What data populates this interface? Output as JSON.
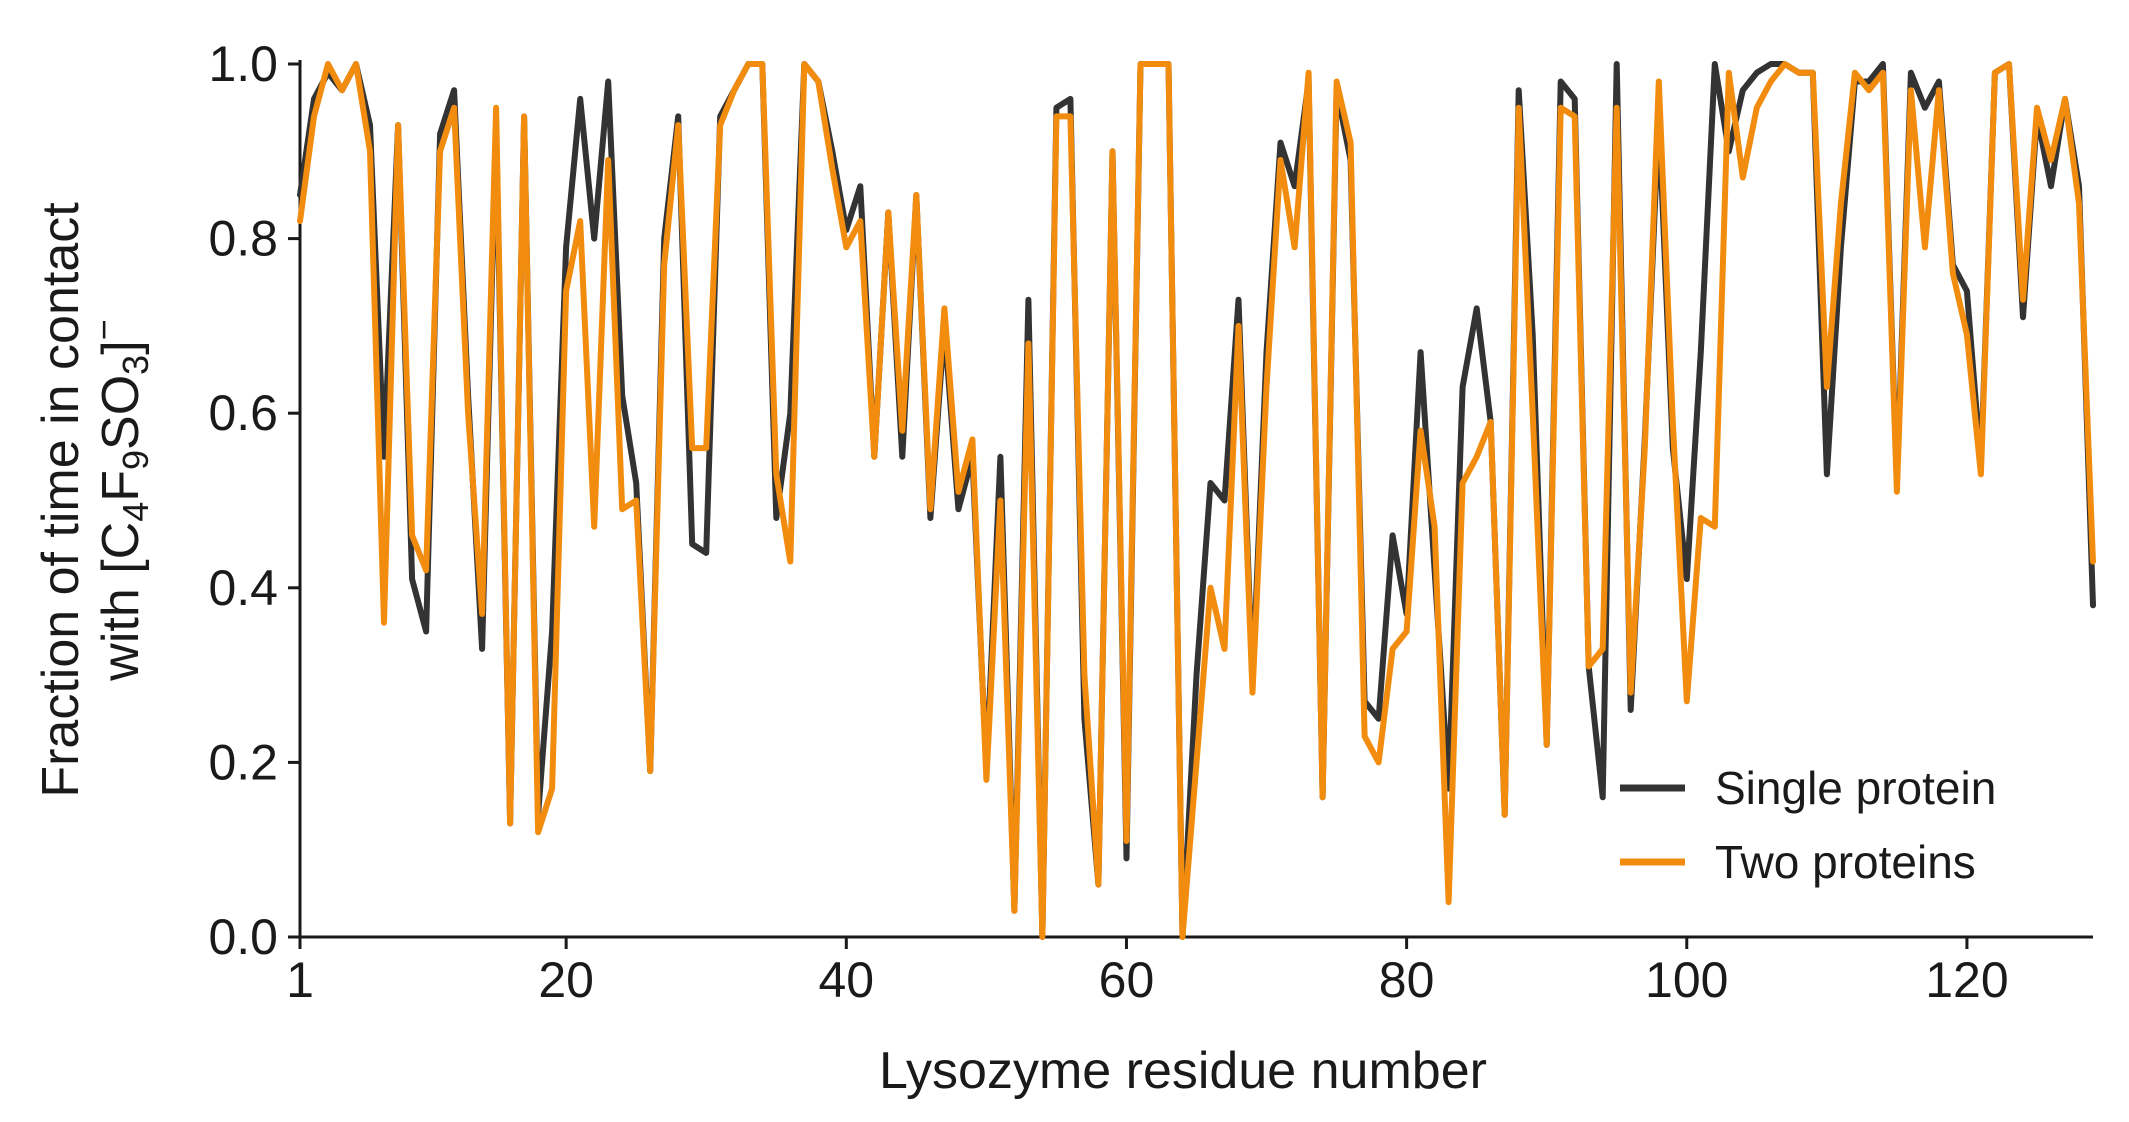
{
  "chart_data": {
    "type": "line",
    "title": "",
    "xlabel": "Lysozyme residue number",
    "ylabel": {
      "line1": "Fraction of time in contact",
      "line2_prefix": "with [C",
      "sub1": "4",
      "mid1": "F",
      "sub2": "9",
      "mid2": "SO",
      "sub3": "3",
      "suffix": "]",
      "sup": "−"
    },
    "xlim": [
      1,
      129
    ],
    "ylim": [
      0,
      1
    ],
    "xticks": [
      1,
      20,
      40,
      60,
      80,
      100,
      120
    ],
    "xtick_labels": [
      "1",
      "20",
      "40",
      "60",
      "80",
      "100",
      "120"
    ],
    "yticks": [
      0,
      0.2,
      0.4,
      0.6,
      0.8,
      1.0
    ],
    "ytick_labels": [
      "0.0",
      "0.2",
      "0.4",
      "0.6",
      "0.8",
      "1.0"
    ],
    "grid": false,
    "legend_position": "bottom-right",
    "x": [
      1,
      2,
      3,
      4,
      5,
      6,
      7,
      8,
      9,
      10,
      11,
      12,
      13,
      14,
      15,
      16,
      17,
      18,
      19,
      20,
      21,
      22,
      23,
      24,
      25,
      26,
      27,
      28,
      29,
      30,
      31,
      32,
      33,
      34,
      35,
      36,
      37,
      38,
      39,
      40,
      41,
      42,
      43,
      44,
      45,
      46,
      47,
      48,
      49,
      50,
      51,
      52,
      53,
      54,
      55,
      56,
      57,
      58,
      59,
      60,
      61,
      62,
      63,
      64,
      65,
      66,
      67,
      68,
      69,
      70,
      71,
      72,
      73,
      74,
      75,
      76,
      77,
      78,
      79,
      80,
      81,
      82,
      83,
      84,
      85,
      86,
      87,
      88,
      89,
      90,
      91,
      92,
      93,
      94,
      95,
      96,
      97,
      98,
      99,
      100,
      101,
      102,
      103,
      104,
      105,
      106,
      107,
      108,
      109,
      110,
      111,
      112,
      113,
      114,
      115,
      116,
      117,
      118,
      119,
      120,
      121,
      122,
      123,
      124,
      125,
      126,
      127,
      128,
      129
    ],
    "series": [
      {
        "name": "Single protein",
        "color": "#333333",
        "values": [
          0.85,
          0.96,
          0.99,
          0.97,
          1.0,
          0.93,
          0.55,
          0.93,
          0.41,
          0.35,
          0.92,
          0.97,
          0.62,
          0.33,
          0.93,
          0.13,
          0.94,
          0.14,
          0.35,
          0.79,
          0.96,
          0.8,
          0.98,
          0.62,
          0.52,
          0.19,
          0.8,
          0.94,
          0.45,
          0.44,
          0.94,
          0.97,
          1.0,
          1.0,
          0.48,
          0.6,
          1.0,
          0.98,
          0.9,
          0.81,
          0.86,
          0.55,
          0.83,
          0.55,
          0.85,
          0.48,
          0.7,
          0.49,
          0.55,
          0.19,
          0.55,
          0.03,
          0.73,
          0.0,
          0.95,
          0.96,
          0.25,
          0.06,
          0.9,
          0.09,
          1.0,
          1.0,
          1.0,
          0.0,
          0.3,
          0.52,
          0.5,
          0.73,
          0.29,
          0.67,
          0.91,
          0.86,
          0.98,
          0.16,
          0.97,
          0.89,
          0.27,
          0.25,
          0.46,
          0.37,
          0.67,
          0.42,
          0.17,
          0.63,
          0.72,
          0.59,
          0.14,
          0.97,
          0.69,
          0.22,
          0.98,
          0.96,
          0.31,
          0.16,
          1.0,
          0.26,
          0.57,
          0.94,
          0.56,
          0.41,
          0.67,
          1.0,
          0.9,
          0.97,
          0.99,
          1.0,
          1.0,
          0.99,
          0.99,
          0.53,
          0.79,
          0.98,
          0.98,
          1.0,
          0.52,
          0.99,
          0.95,
          0.98,
          0.77,
          0.74,
          0.54,
          0.99,
          1.0,
          0.71,
          0.94,
          0.86,
          0.96,
          0.86,
          0.38
        ]
      },
      {
        "name": "Two proteins",
        "color": "#f28c0f",
        "values": [
          0.82,
          0.94,
          1.0,
          0.97,
          1.0,
          0.9,
          0.36,
          0.93,
          0.46,
          0.42,
          0.9,
          0.95,
          0.6,
          0.37,
          0.95,
          0.13,
          0.94,
          0.12,
          0.17,
          0.74,
          0.82,
          0.47,
          0.89,
          0.49,
          0.5,
          0.19,
          0.77,
          0.93,
          0.56,
          0.56,
          0.93,
          0.97,
          1.0,
          1.0,
          0.53,
          0.43,
          1.0,
          0.98,
          0.88,
          0.79,
          0.82,
          0.55,
          0.83,
          0.58,
          0.85,
          0.49,
          0.72,
          0.51,
          0.57,
          0.18,
          0.5,
          0.03,
          0.68,
          0.0,
          0.94,
          0.94,
          0.3,
          0.06,
          0.9,
          0.11,
          1.0,
          1.0,
          1.0,
          0.0,
          0.2,
          0.4,
          0.33,
          0.7,
          0.28,
          0.63,
          0.89,
          0.79,
          0.99,
          0.16,
          0.98,
          0.91,
          0.23,
          0.2,
          0.33,
          0.35,
          0.58,
          0.47,
          0.04,
          0.52,
          0.55,
          0.59,
          0.14,
          0.95,
          0.6,
          0.22,
          0.95,
          0.94,
          0.31,
          0.33,
          0.95,
          0.28,
          0.56,
          0.98,
          0.59,
          0.27,
          0.48,
          0.47,
          0.99,
          0.87,
          0.95,
          0.98,
          1.0,
          0.99,
          0.99,
          0.63,
          0.84,
          0.99,
          0.97,
          0.99,
          0.51,
          0.97,
          0.79,
          0.97,
          0.76,
          0.69,
          0.53,
          0.99,
          1.0,
          0.73,
          0.95,
          0.89,
          0.96,
          0.84,
          0.43
        ]
      }
    ]
  }
}
